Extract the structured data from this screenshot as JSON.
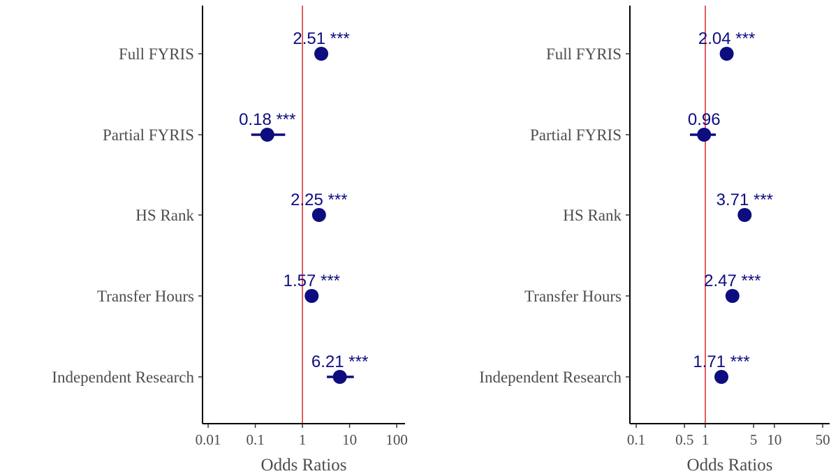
{
  "chart_data": [
    {
      "type": "forest",
      "x_label": "Odds Ratios",
      "log_x": true,
      "categories": [
        "Full FYRIS",
        "Partial FYRIS",
        "HS Rank",
        "Transfer Hours",
        "Independent Research"
      ],
      "values": [
        2.51,
        0.18,
        2.25,
        1.57,
        6.21
      ],
      "ci_low": [
        2.2,
        0.082,
        1.95,
        1.38,
        3.3
      ],
      "ci_high": [
        2.85,
        0.43,
        2.6,
        1.8,
        12.3
      ],
      "significance": [
        "***",
        "***",
        "***",
        "***",
        "***"
      ],
      "color": "#0d0d80",
      "reference_line": 1,
      "reference_color": "#d62728",
      "xlim": [
        0.0076,
        150
      ],
      "xticks": [
        0.01,
        0.1,
        1,
        10,
        100
      ]
    },
    {
      "type": "forest",
      "x_label": "Odds Ratios",
      "log_x": true,
      "categories": [
        "Full FYRIS",
        "Partial FYRIS",
        "HS Rank",
        "Transfer Hours",
        "Independent Research"
      ],
      "values": [
        2.04,
        0.96,
        3.71,
        2.47,
        1.71
      ],
      "ci_low": [
        1.85,
        0.6,
        3.3,
        2.2,
        1.55
      ],
      "ci_high": [
        2.25,
        1.42,
        4.15,
        2.75,
        1.9
      ],
      "significance": [
        "***",
        null,
        "***",
        "***",
        "***"
      ],
      "color": "#0d0d80",
      "reference_line": 1,
      "reference_color": "#d62728",
      "xlim": [
        0.081,
        63
      ],
      "xticks": [
        0.1,
        0.5,
        1,
        5,
        10,
        50
      ]
    }
  ]
}
